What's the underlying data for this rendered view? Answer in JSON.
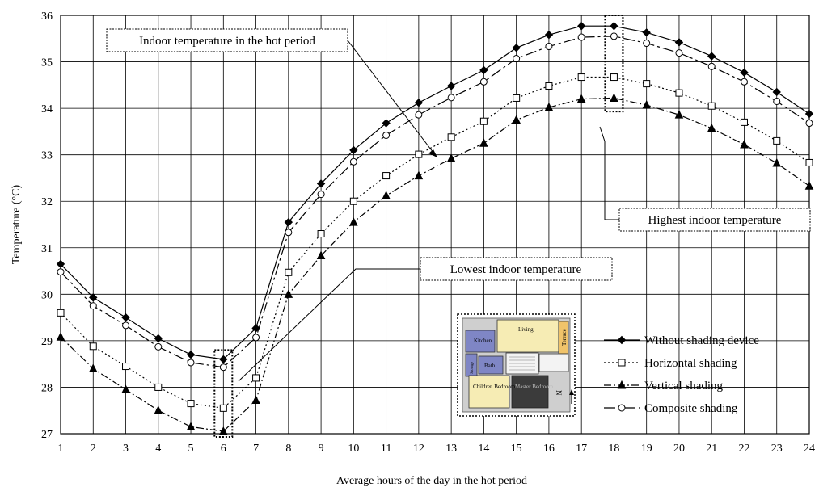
{
  "chart_data": {
    "type": "line",
    "xlabel": "Average hours of the day in the hot period",
    "ylabel": "Temperature (°C)",
    "xlim": [
      1,
      24
    ],
    "ylim": [
      27,
      36
    ],
    "x": [
      1,
      2,
      3,
      4,
      5,
      6,
      7,
      8,
      9,
      10,
      11,
      12,
      13,
      14,
      15,
      16,
      17,
      18,
      19,
      20,
      21,
      22,
      23,
      24
    ],
    "x_ticks": [
      "1",
      "2",
      "3",
      "4",
      "5",
      "6",
      "7",
      "8",
      "9",
      "10",
      "11",
      "12",
      "13",
      "14",
      "15",
      "16",
      "17",
      "18",
      "19",
      "20",
      "21",
      "22",
      "23",
      "24"
    ],
    "y_ticks": [
      "27",
      "28",
      "29",
      "30",
      "31",
      "32",
      "33",
      "34",
      "35",
      "36"
    ],
    "grid": true,
    "legend_position": "bottom-right",
    "series": [
      {
        "name": "Without shading device",
        "marker": "diamond",
        "dash": "solid",
        "values": [
          30.65,
          29.93,
          29.5,
          29.05,
          28.7,
          28.6,
          29.27,
          31.55,
          32.38,
          33.1,
          33.68,
          34.12,
          34.48,
          34.82,
          35.3,
          35.58,
          35.77,
          35.77,
          35.63,
          35.42,
          35.12,
          34.77,
          34.35,
          33.88
        ]
      },
      {
        "name": "Horizontal shading",
        "marker": "square-open",
        "dash": "dotted",
        "values": [
          29.6,
          28.88,
          28.45,
          28.0,
          27.65,
          27.55,
          28.2,
          30.47,
          31.3,
          32.0,
          32.55,
          33.01,
          33.38,
          33.72,
          34.22,
          34.48,
          34.67,
          34.67,
          34.53,
          34.33,
          34.05,
          33.7,
          33.3,
          32.83
        ]
      },
      {
        "name": "Vertical shading",
        "marker": "triangle",
        "dash": "dashdot",
        "values": [
          29.08,
          28.4,
          27.95,
          27.5,
          27.15,
          27.05,
          27.72,
          30.0,
          30.83,
          31.55,
          32.12,
          32.55,
          32.92,
          33.25,
          33.75,
          34.02,
          34.2,
          34.22,
          34.07,
          33.86,
          33.57,
          33.22,
          32.82,
          32.33
        ]
      },
      {
        "name": "Composite shading",
        "marker": "circle-open",
        "dash": "dashdotlong",
        "values": [
          30.48,
          29.75,
          29.33,
          28.87,
          28.53,
          28.43,
          29.07,
          31.33,
          32.15,
          32.85,
          33.42,
          33.86,
          34.23,
          34.57,
          35.07,
          35.33,
          35.53,
          35.55,
          35.4,
          35.19,
          34.9,
          34.57,
          34.15,
          33.68
        ]
      }
    ],
    "annotations": {
      "hot_period": "Indoor temperature in the hot period",
      "highest": "Highest indoor temperature",
      "lowest": "Lowest indoor temperature"
    },
    "inset_floor_plan": {
      "rooms": [
        "Kitchen",
        "Living",
        "Terrace",
        "Bath",
        "Storage",
        "Children Bedroom",
        "Master Bedroom"
      ],
      "north_label": "N"
    }
  }
}
